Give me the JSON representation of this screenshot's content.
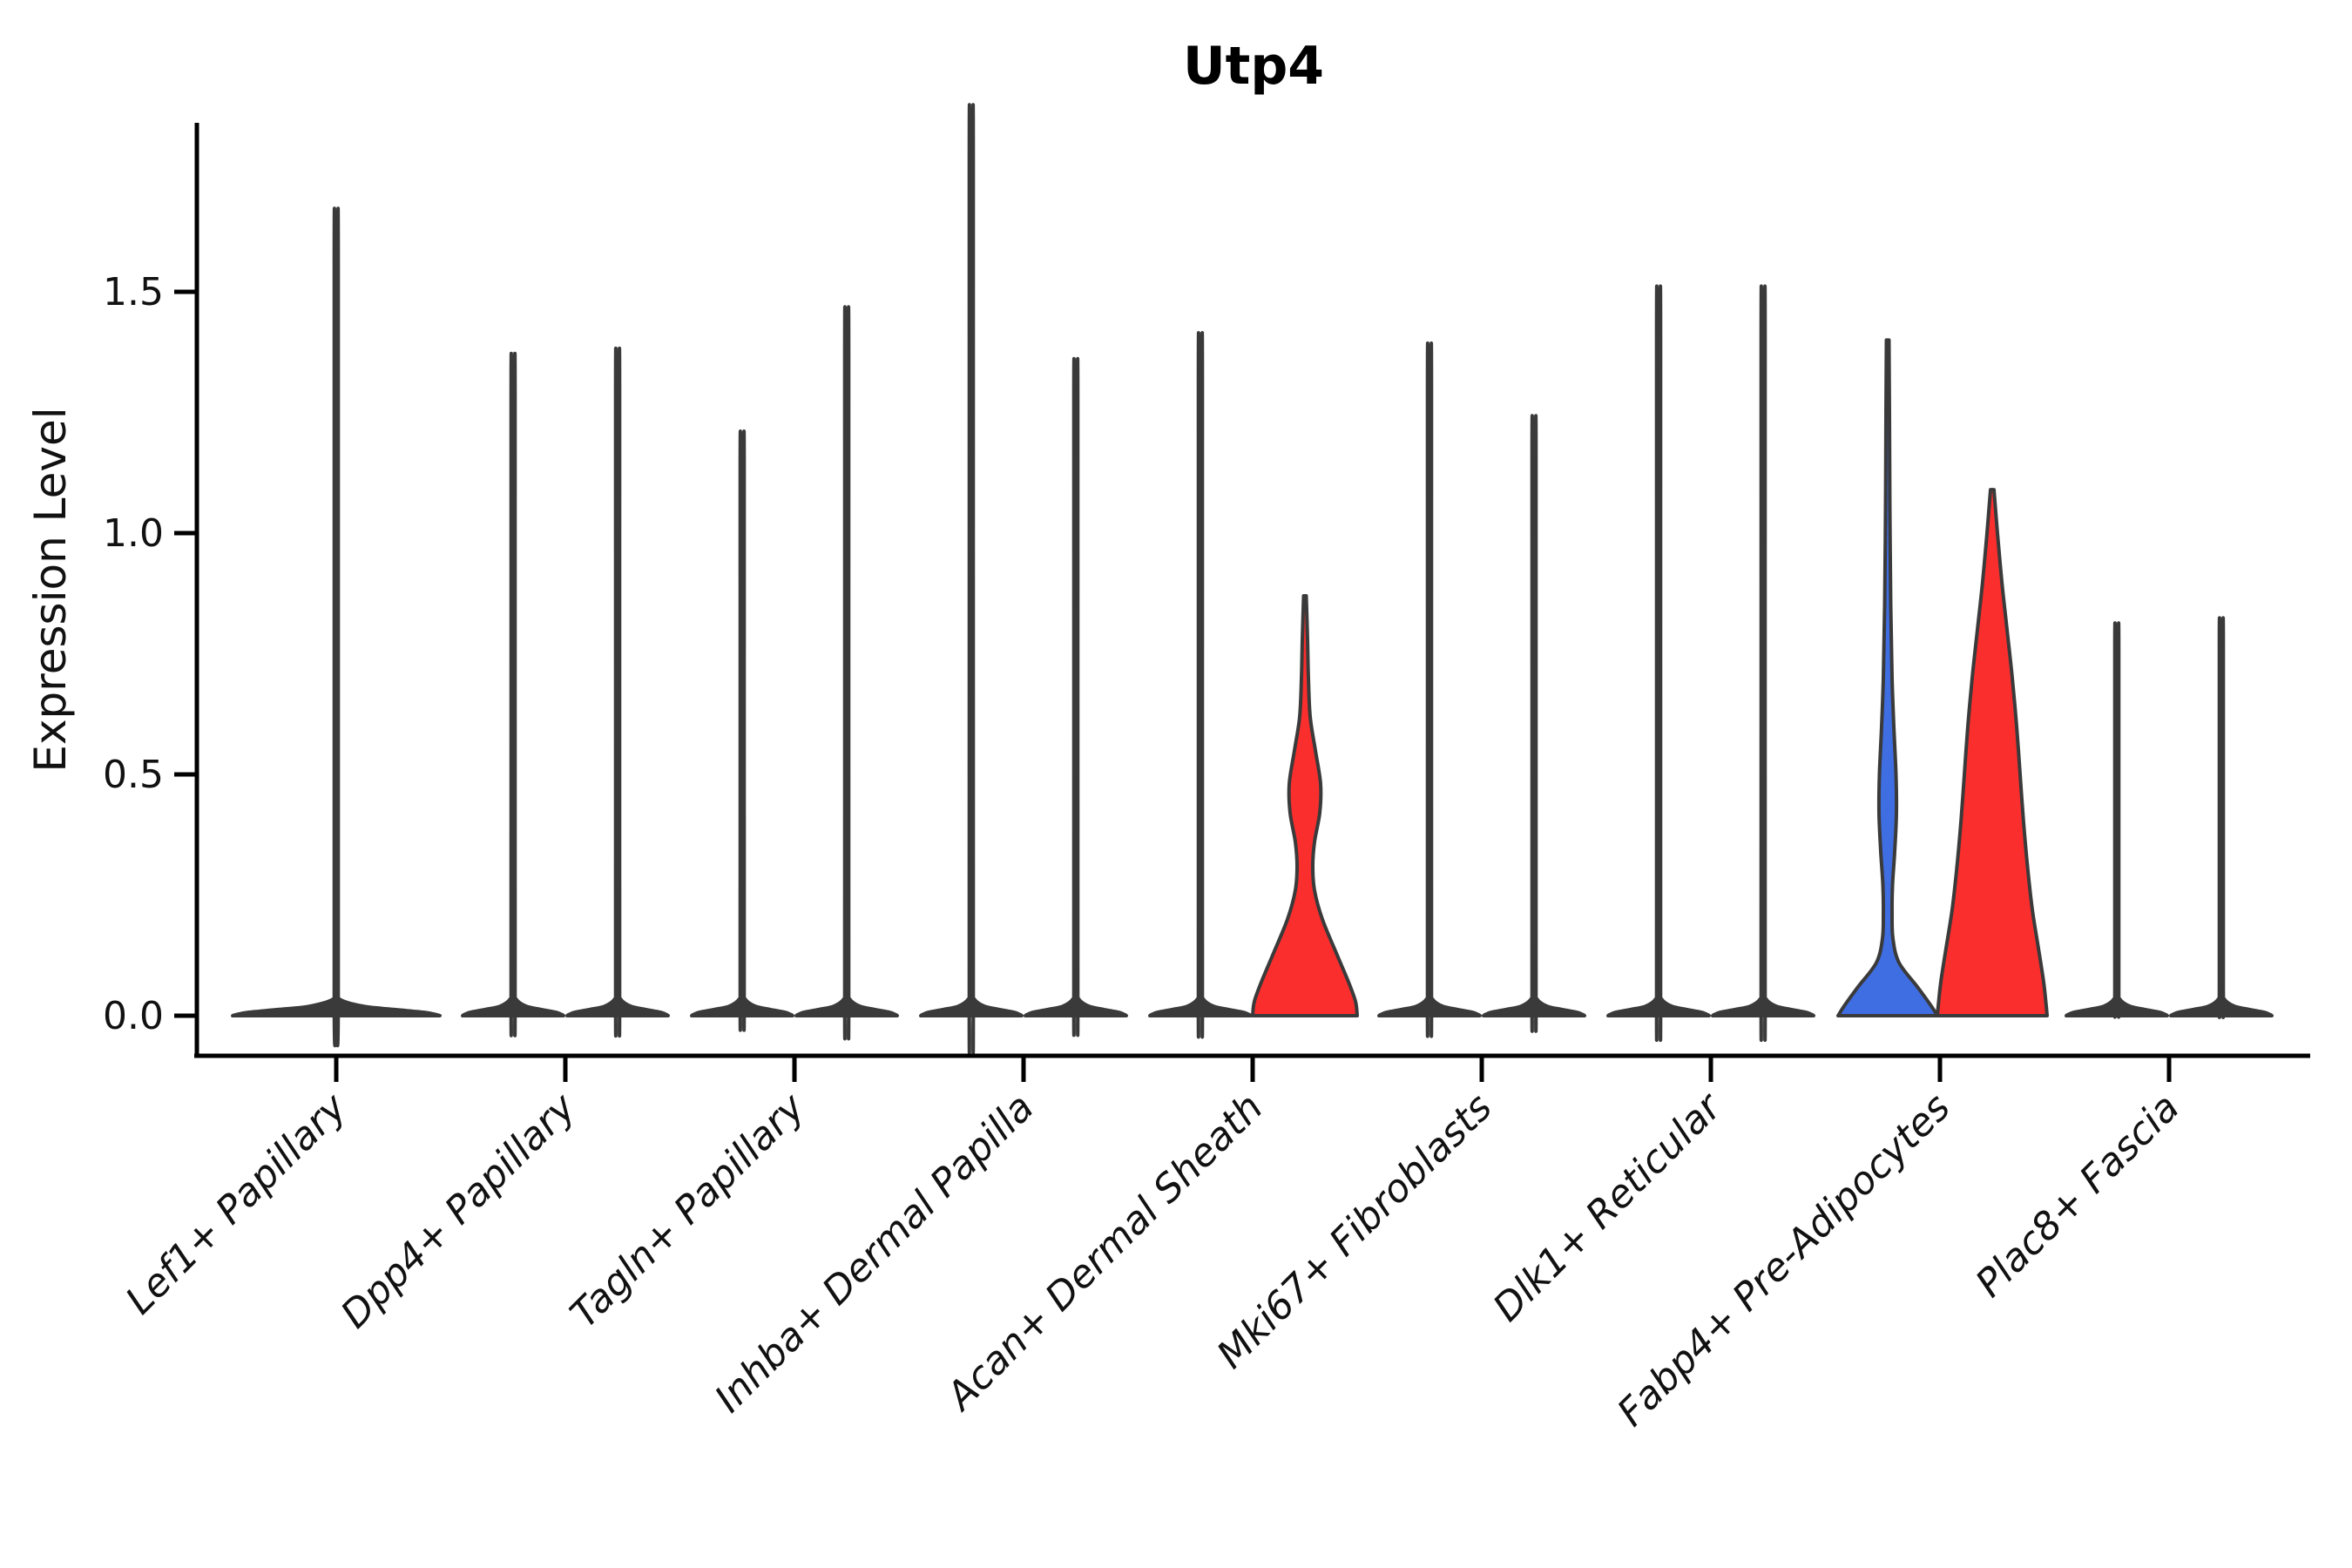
{
  "title": "Utp4",
  "colors": {
    "red": "#fb2e2e",
    "blue": "#3f6ee3",
    "outline": "#3a3a3a",
    "axis": "#000000",
    "text": "#111111"
  },
  "chart_data": {
    "type": "violin",
    "title": "Utp4",
    "xlabel": "",
    "ylabel": "Expression Level",
    "ylim": [
      0,
      1.85
    ],
    "grid": false,
    "legend": "none",
    "yticks": [
      {
        "label": "0.0",
        "value": 0.0
      },
      {
        "label": "0.5",
        "value": 0.5
      },
      {
        "label": "1.0",
        "value": 1.0
      },
      {
        "label": "1.5",
        "value": 1.5
      }
    ],
    "categories": [
      "Lef1+ Papillary",
      "Dpp4+ Papillary",
      "Tagln+ Papillary",
      "Inhba+ Dermal Papilla",
      "Acan+ Dermal Sheath",
      "Mki67+ Fibroblasts",
      "Dlk1+ Reticular",
      "Fabp4+ Pre-Adipocytes",
      "Plac8+ Fascia"
    ],
    "violins": [
      [
        {
          "group": 0,
          "max_expression": 1.57,
          "fill": "plain",
          "single": true
        }
      ],
      [
        {
          "group": 0,
          "max_expression": 1.29,
          "fill": "plain"
        },
        {
          "group": 1,
          "max_expression": 1.3,
          "fill": "plain"
        }
      ],
      [
        {
          "group": 0,
          "max_expression": 1.14,
          "fill": "plain"
        },
        {
          "group": 1,
          "max_expression": 1.38,
          "fill": "plain"
        }
      ],
      [
        {
          "group": 0,
          "max_expression": 1.77,
          "fill": "plain"
        },
        {
          "group": 1,
          "max_expression": 1.28,
          "fill": "plain"
        }
      ],
      [
        {
          "group": 0,
          "max_expression": 1.33,
          "fill": "plain"
        },
        {
          "group": 1,
          "max_expression": 0.87,
          "fill": "red",
          "profile": [
            [
              0.87,
              1.5
            ],
            [
              0.78,
              3
            ],
            [
              0.7,
              4
            ],
            [
              0.62,
              6
            ],
            [
              0.55,
              12
            ],
            [
              0.48,
              18
            ],
            [
              0.42,
              17
            ],
            [
              0.36,
              11
            ],
            [
              0.31,
              9
            ],
            [
              0.26,
              11
            ],
            [
              0.2,
              20
            ],
            [
              0.13,
              36
            ],
            [
              0.07,
              50
            ],
            [
              0.03,
              58
            ],
            [
              0,
              60
            ]
          ]
        }
      ],
      [
        {
          "group": 0,
          "max_expression": 1.31,
          "fill": "plain"
        },
        {
          "group": 1,
          "max_expression": 1.17,
          "fill": "plain"
        }
      ],
      [
        {
          "group": 0,
          "max_expression": 1.42,
          "fill": "plain"
        },
        {
          "group": 1,
          "max_expression": 1.42,
          "fill": "plain"
        }
      ],
      [
        {
          "group": 0,
          "max_expression": 1.4,
          "fill": "blue",
          "profile": [
            [
              1.4,
              1.5
            ],
            [
              1.25,
              2
            ],
            [
              1.05,
              2.5
            ],
            [
              0.85,
              3.5
            ],
            [
              0.7,
              5
            ],
            [
              0.6,
              7
            ],
            [
              0.5,
              9.5
            ],
            [
              0.42,
              10
            ],
            [
              0.34,
              8
            ],
            [
              0.27,
              5.5
            ],
            [
              0.21,
              5
            ],
            [
              0.16,
              6
            ],
            [
              0.11,
              13
            ],
            [
              0.06,
              34
            ],
            [
              0.02,
              50
            ],
            [
              0,
              57
            ]
          ]
        },
        {
          "group": 1,
          "max_expression": 1.09,
          "fill": "red",
          "profile": [
            [
              1.09,
              2
            ],
            [
              1.0,
              6
            ],
            [
              0.9,
              11
            ],
            [
              0.8,
              17
            ],
            [
              0.7,
              23
            ],
            [
              0.6,
              28
            ],
            [
              0.5,
              32
            ],
            [
              0.4,
              36
            ],
            [
              0.3,
              41
            ],
            [
              0.22,
              46
            ],
            [
              0.14,
              53
            ],
            [
              0.07,
              59
            ],
            [
              0.02,
              62
            ],
            [
              0,
              63
            ]
          ]
        }
      ],
      [
        {
          "group": 0,
          "max_expression": 0.77,
          "fill": "plain"
        },
        {
          "group": 1,
          "max_expression": 0.78,
          "fill": "plain"
        }
      ]
    ]
  }
}
